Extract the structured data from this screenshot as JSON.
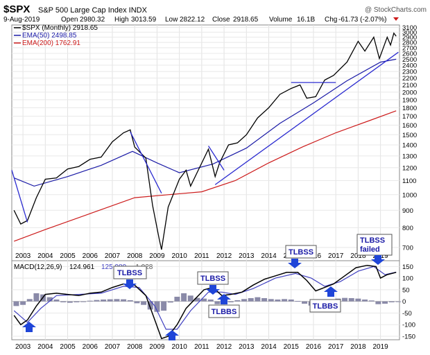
{
  "header": {
    "symbol": "$SPX",
    "name": "S&P 500 Large Cap Index INDX",
    "watermark": "@ StockCharts.com",
    "date": "9-Aug-2019",
    "open_label": "Open",
    "open": "2980.32",
    "high_label": "High",
    "high": "3013.59",
    "low_label": "Low",
    "low": "2822.12",
    "close_label": "Close",
    "close": "2918.65",
    "volume_label": "Volume",
    "volume": "16.1B",
    "chg_label": "Chg",
    "chg": "-61.73 (-2.07%)"
  },
  "legend": [
    {
      "text": "$SPX (Monthly) 2918.65",
      "color": "#000000"
    },
    {
      "text": "EMA(50) 2498.85",
      "color": "#1a1aa6"
    },
    {
      "text": "EMA(200) 1762.91",
      "color": "#cc1a1a"
    }
  ],
  "macd_legend": {
    "label": "MACD(12,26,9)",
    "v1": "124.961",
    "v2": "125.989",
    "v3": "-1.028"
  },
  "colors": {
    "price": "#000000",
    "ema50": "#1a1aa6",
    "ema200": "#cc1a1a",
    "signal": "#4040c0",
    "hist": "#8a8aa8",
    "annot": "#1a1aa6",
    "arrow": "#1f45d8"
  },
  "annotations": [
    {
      "text": "TLBSS",
      "anchor": "2008-1"
    },
    {
      "text": "TLBSS",
      "anchor": "2011-7"
    },
    {
      "text": "TLBBS",
      "anchor": "2011-11"
    },
    {
      "text": "TLBSS",
      "anchor": "2015-3"
    },
    {
      "text": "TLBBS",
      "anchor": "2016-3"
    },
    {
      "text": "TLBSS failed",
      "anchor": "2018-9"
    }
  ],
  "chart_data": [
    {
      "type": "line",
      "panel": "price",
      "scale": "log",
      "ylim": [
        640,
        3150
      ],
      "xlim": [
        2002.5,
        2019.85
      ],
      "x_ticks": [
        "2003",
        "2004",
        "2005",
        "2006",
        "2007",
        "2008",
        "2009",
        "2010",
        "2011",
        "2012",
        "2013",
        "2014",
        "2015",
        "2016",
        "2017",
        "2018",
        "2019"
      ],
      "y_ticks": [
        700,
        800,
        900,
        1000,
        1100,
        1200,
        1300,
        1400,
        1500,
        1600,
        1700,
        1800,
        1900,
        2000,
        2100,
        2200,
        2300,
        2400,
        2500,
        2600,
        2700,
        2800,
        2900,
        3000,
        3100
      ],
      "series": [
        {
          "name": "$SPX (Monthly) 2918.65",
          "points": [
            [
              2002.6,
              900
            ],
            [
              2002.9,
              820
            ],
            [
              2003.2,
              840
            ],
            [
              2003.6,
              980
            ],
            [
              2004.0,
              1110
            ],
            [
              2004.5,
              1120
            ],
            [
              2005.0,
              1190
            ],
            [
              2005.5,
              1210
            ],
            [
              2006.0,
              1270
            ],
            [
              2006.5,
              1290
            ],
            [
              2007.0,
              1430
            ],
            [
              2007.5,
              1520
            ],
            [
              2007.8,
              1550
            ],
            [
              2008.0,
              1380
            ],
            [
              2008.5,
              1280
            ],
            [
              2008.8,
              930
            ],
            [
              2009.1,
              740
            ],
            [
              2009.2,
              690
            ],
            [
              2009.5,
              920
            ],
            [
              2010.0,
              1110
            ],
            [
              2010.3,
              1180
            ],
            [
              2010.5,
              1060
            ],
            [
              2010.9,
              1200
            ],
            [
              2011.3,
              1360
            ],
            [
              2011.6,
              1130
            ],
            [
              2011.8,
              1240
            ],
            [
              2012.2,
              1400
            ],
            [
              2012.6,
              1420
            ],
            [
              2013.0,
              1500
            ],
            [
              2013.5,
              1680
            ],
            [
              2014.0,
              1800
            ],
            [
              2014.5,
              1970
            ],
            [
              2015.0,
              2050
            ],
            [
              2015.4,
              2100
            ],
            [
              2015.7,
              1920
            ],
            [
              2016.1,
              1940
            ],
            [
              2016.5,
              2170
            ],
            [
              2016.9,
              2240
            ],
            [
              2017.5,
              2450
            ],
            [
              2018.0,
              2820
            ],
            [
              2018.3,
              2640
            ],
            [
              2018.7,
              2900
            ],
            [
              2018.95,
              2510
            ],
            [
              2019.3,
              2900
            ],
            [
              2019.45,
              2750
            ],
            [
              2019.6,
              2980
            ],
            [
              2019.7,
              2918
            ]
          ]
        },
        {
          "name": "EMA(50) 2498.85",
          "points": [
            [
              2002.6,
              1120
            ],
            [
              2003.5,
              1060
            ],
            [
              2005.0,
              1130
            ],
            [
              2006.5,
              1220
            ],
            [
              2007.9,
              1340
            ],
            [
              2009.0,
              1240
            ],
            [
              2010.0,
              1160
            ],
            [
              2011.5,
              1230
            ],
            [
              2013.0,
              1370
            ],
            [
              2014.5,
              1620
            ],
            [
              2016.0,
              1860
            ],
            [
              2017.5,
              2160
            ],
            [
              2019.0,
              2450
            ],
            [
              2019.7,
              2499
            ]
          ]
        },
        {
          "name": "EMA(200) 1762.91",
          "points": [
            [
              2002.6,
              730
            ],
            [
              2004.0,
              790
            ],
            [
              2006.0,
              880
            ],
            [
              2008.0,
              980
            ],
            [
              2009.5,
              1000
            ],
            [
              2011.0,
              1020
            ],
            [
              2012.5,
              1100
            ],
            [
              2014.0,
              1240
            ],
            [
              2015.5,
              1380
            ],
            [
              2017.0,
              1520
            ],
            [
              2018.5,
              1650
            ],
            [
              2019.7,
              1763
            ]
          ]
        }
      ]
    },
    {
      "type": "line",
      "panel": "macd",
      "ylim": [
        -165,
        175
      ],
      "y_ticks": [
        -150,
        -100,
        -50,
        0,
        50,
        100,
        150
      ],
      "series": [
        {
          "name": "MACD(12,26,9)",
          "points": [
            [
              2002.6,
              -60
            ],
            [
              2002.9,
              -100
            ],
            [
              2003.2,
              -80
            ],
            [
              2003.6,
              -20
            ],
            [
              2004.0,
              30
            ],
            [
              2004.5,
              35
            ],
            [
              2005.0,
              30
            ],
            [
              2005.5,
              25
            ],
            [
              2006.0,
              35
            ],
            [
              2006.5,
              40
            ],
            [
              2007.0,
              60
            ],
            [
              2007.5,
              75
            ],
            [
              2008.0,
              70
            ],
            [
              2008.5,
              25
            ],
            [
              2008.9,
              -80
            ],
            [
              2009.2,
              -160
            ],
            [
              2009.5,
              -150
            ],
            [
              2009.9,
              -100
            ],
            [
              2010.3,
              -30
            ],
            [
              2010.7,
              10
            ],
            [
              2011.1,
              50
            ],
            [
              2011.5,
              60
            ],
            [
              2011.9,
              25
            ],
            [
              2012.3,
              30
            ],
            [
              2012.8,
              40
            ],
            [
              2013.3,
              70
            ],
            [
              2013.8,
              95
            ],
            [
              2014.3,
              110
            ],
            [
              2014.8,
              125
            ],
            [
              2015.3,
              125
            ],
            [
              2015.7,
              90
            ],
            [
              2016.1,
              45
            ],
            [
              2016.5,
              60
            ],
            [
              2016.9,
              75
            ],
            [
              2017.4,
              110
            ],
            [
              2017.9,
              145
            ],
            [
              2018.4,
              155
            ],
            [
              2018.8,
              150
            ],
            [
              2019.0,
              100
            ],
            [
              2019.3,
              115
            ],
            [
              2019.7,
              125
            ]
          ]
        },
        {
          "name": "signal",
          "points": [
            [
              2002.6,
              -40
            ],
            [
              2003.2,
              -90
            ],
            [
              2003.8,
              -30
            ],
            [
              2004.5,
              25
            ],
            [
              2005.5,
              30
            ],
            [
              2006.5,
              35
            ],
            [
              2007.5,
              65
            ],
            [
              2008.2,
              60
            ],
            [
              2008.9,
              -20
            ],
            [
              2009.4,
              -120
            ],
            [
              2009.9,
              -120
            ],
            [
              2010.5,
              -40
            ],
            [
              2011.3,
              40
            ],
            [
              2011.9,
              40
            ],
            [
              2012.5,
              30
            ],
            [
              2013.3,
              55
            ],
            [
              2014.3,
              100
            ],
            [
              2015.2,
              120
            ],
            [
              2015.9,
              100
            ],
            [
              2016.5,
              65
            ],
            [
              2017.2,
              85
            ],
            [
              2018.0,
              130
            ],
            [
              2018.7,
              150
            ],
            [
              2019.2,
              115
            ],
            [
              2019.7,
              126
            ]
          ]
        }
      ],
      "histogram": [
        [
          2002.7,
          -20
        ],
        [
          2003.0,
          -15
        ],
        [
          2003.3,
          10
        ],
        [
          2003.6,
          35
        ],
        [
          2003.9,
          30
        ],
        [
          2004.2,
          18
        ],
        [
          2004.5,
          8
        ],
        [
          2004.8,
          -4
        ],
        [
          2005.1,
          -6
        ],
        [
          2005.4,
          -4
        ],
        [
          2005.7,
          -2
        ],
        [
          2006.0,
          3
        ],
        [
          2006.3,
          6
        ],
        [
          2006.6,
          8
        ],
        [
          2006.9,
          9
        ],
        [
          2007.2,
          10
        ],
        [
          2007.5,
          9
        ],
        [
          2007.8,
          5
        ],
        [
          2008.1,
          -8
        ],
        [
          2008.4,
          -15
        ],
        [
          2008.7,
          -35
        ],
        [
          2009.0,
          -45
        ],
        [
          2009.3,
          -40
        ],
        [
          2009.6,
          -5
        ],
        [
          2009.9,
          20
        ],
        [
          2010.2,
          35
        ],
        [
          2010.5,
          25
        ],
        [
          2010.8,
          15
        ],
        [
          2011.1,
          12
        ],
        [
          2011.4,
          8
        ],
        [
          2011.7,
          -12
        ],
        [
          2012.0,
          -10
        ],
        [
          2012.3,
          -4
        ],
        [
          2012.6,
          5
        ],
        [
          2012.9,
          10
        ],
        [
          2013.2,
          14
        ],
        [
          2013.5,
          18
        ],
        [
          2013.8,
          14
        ],
        [
          2014.1,
          10
        ],
        [
          2014.4,
          8
        ],
        [
          2014.7,
          10
        ],
        [
          2015.0,
          8
        ],
        [
          2015.3,
          2
        ],
        [
          2015.6,
          -10
        ],
        [
          2015.9,
          -18
        ],
        [
          2016.2,
          -12
        ],
        [
          2016.5,
          -4
        ],
        [
          2016.8,
          4
        ],
        [
          2017.1,
          12
        ],
        [
          2017.4,
          15
        ],
        [
          2017.7,
          14
        ],
        [
          2018.0,
          12
        ],
        [
          2018.3,
          8
        ],
        [
          2018.6,
          4
        ],
        [
          2018.9,
          -12
        ],
        [
          2019.2,
          -10
        ],
        [
          2019.5,
          -4
        ],
        [
          2019.8,
          -1
        ]
      ]
    }
  ]
}
